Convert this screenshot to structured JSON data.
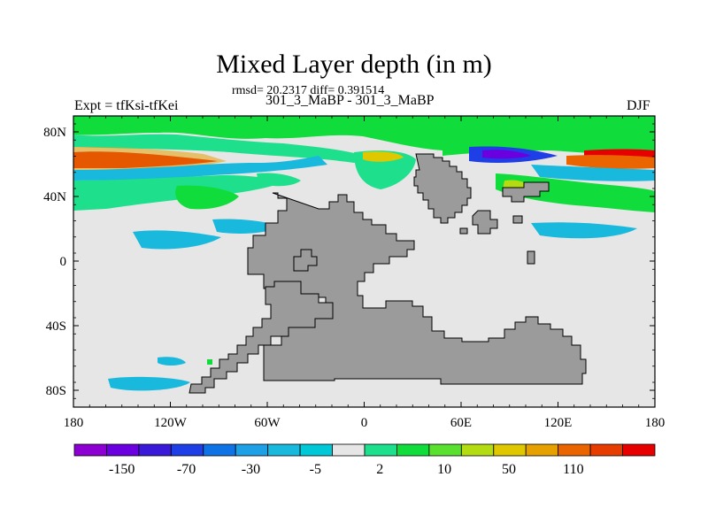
{
  "title": "Mixed Layer depth (in m)",
  "stats_line": "rmsd= 20.2317 diff= 0.391514",
  "subtitle": "301_3_MaBP - 301_3_MaBP",
  "left_label": "Expt = tfKsi-tfKei",
  "right_label": "DJF",
  "y_ticks": [
    "80N",
    "40N",
    "0",
    "40S",
    "80S"
  ],
  "x_ticks": [
    "180",
    "120W",
    "60W",
    "0",
    "60E",
    "120E",
    "180"
  ],
  "colorbar": {
    "labels": [
      "-150",
      "-70",
      "-30",
      "-5",
      "2",
      "10",
      "50",
      "110"
    ],
    "colors": [
      "#8d00d2",
      "#6a00e0",
      "#3a1ad8",
      "#1e3ee6",
      "#0f73e6",
      "#1ea0e6",
      "#18b9dc",
      "#00c8d6",
      "#e6e6e6",
      "#1ee08c",
      "#10dc3c",
      "#5ae02e",
      "#b4dc12",
      "#e0c800",
      "#e6a000",
      "#ea6400",
      "#e63c00",
      "#e60000"
    ]
  },
  "colors": {
    "land": "#9b9b9b",
    "ocean_neutral": "#e6e6e6"
  }
}
